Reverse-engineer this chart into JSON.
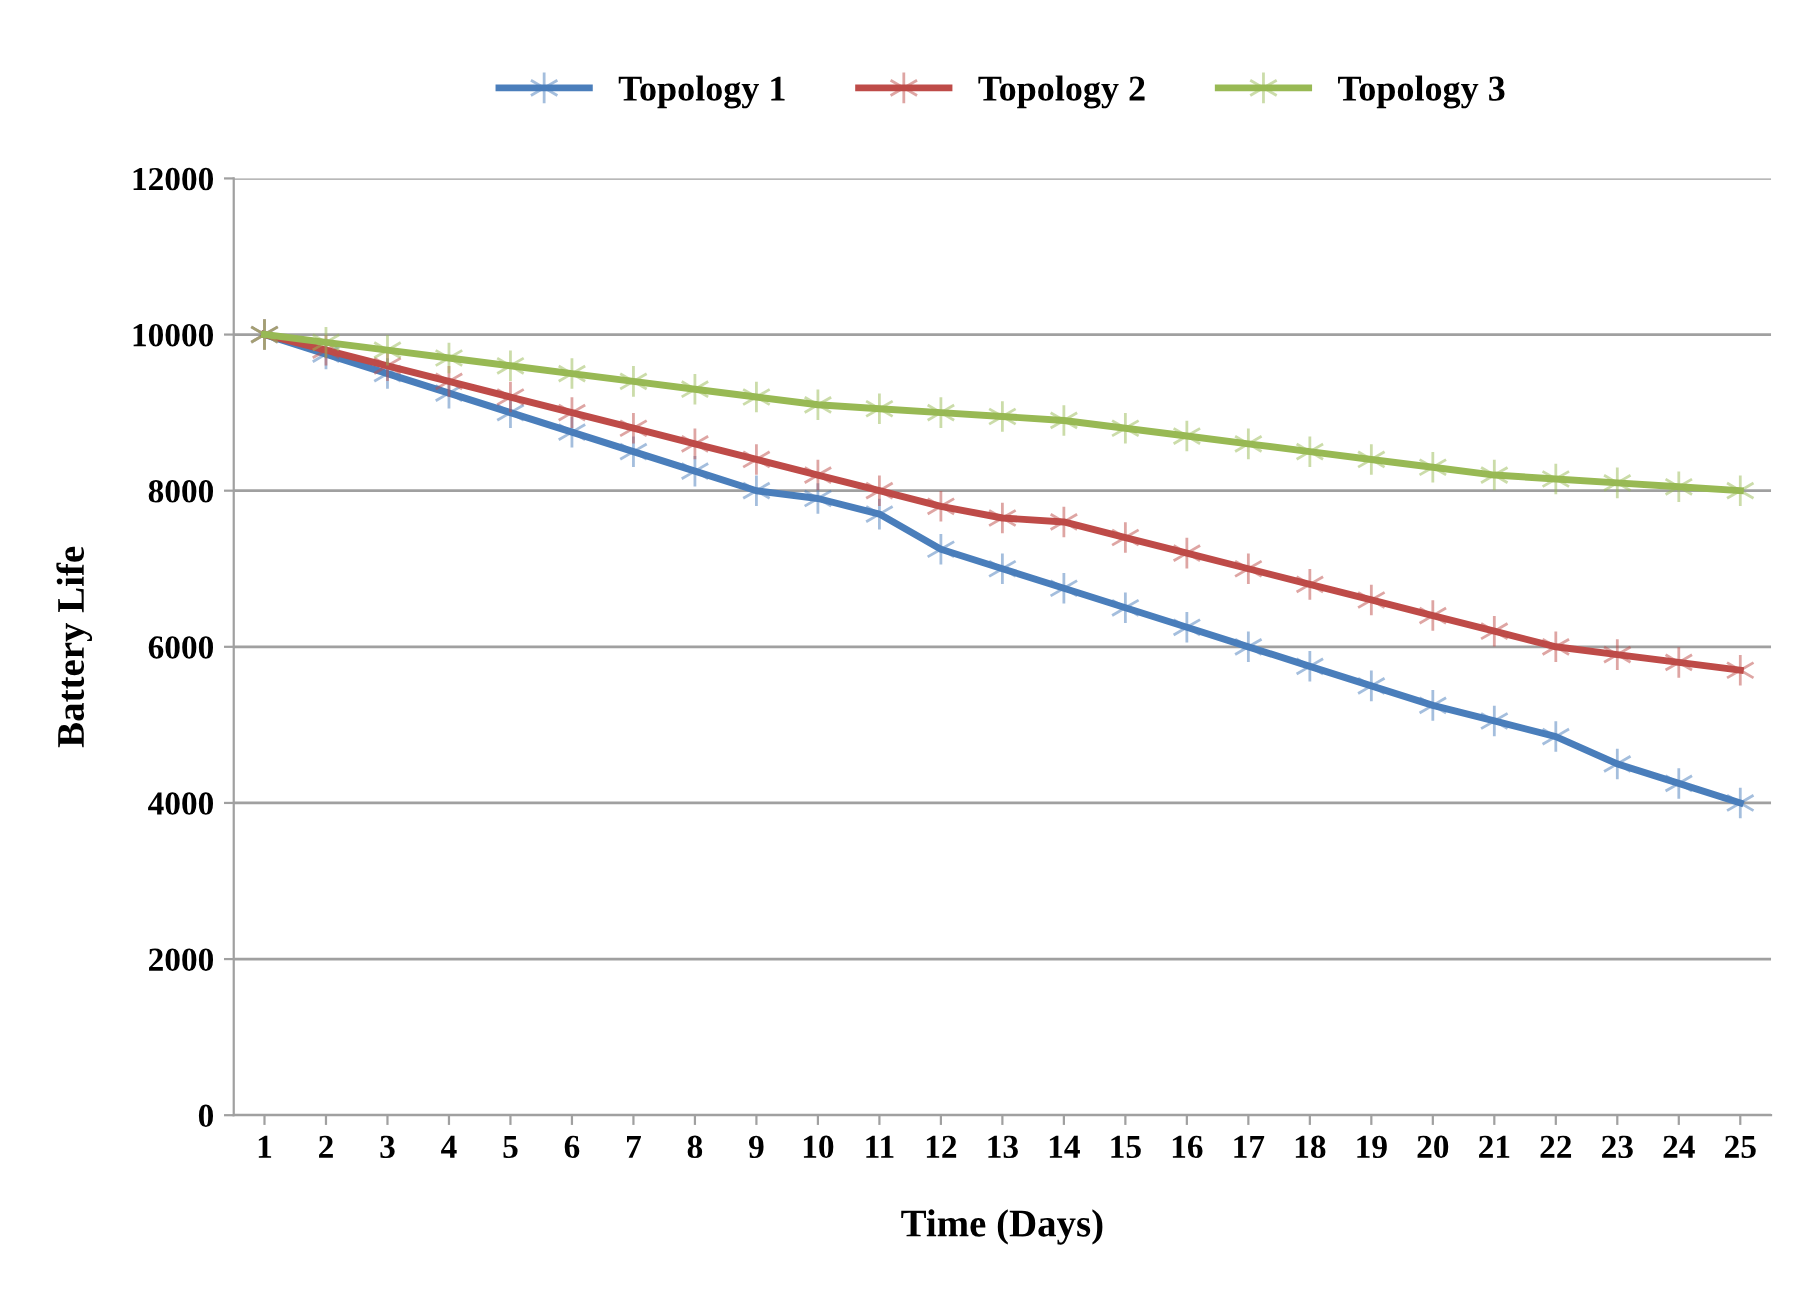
{
  "chart_data": {
    "type": "line",
    "xlabel": "Time (Days)",
    "ylabel": "Battery Life",
    "categories": [
      "1",
      "2",
      "3",
      "4",
      "5",
      "6",
      "7",
      "8",
      "9",
      "10",
      "11",
      "12",
      "13",
      "14",
      "15",
      "16",
      "17",
      "18",
      "19",
      "20",
      "21",
      "22",
      "23",
      "24",
      "25"
    ],
    "series": [
      {
        "name": "Topology 1",
        "color": "#4a7ebb",
        "values": [
          10000,
          9750,
          9500,
          9250,
          9000,
          8750,
          8500,
          8250,
          8000,
          7900,
          7700,
          7250,
          7000,
          6750,
          6500,
          6250,
          6000,
          5750,
          5500,
          5250,
          5050,
          4850,
          4500,
          4250,
          4000
        ]
      },
      {
        "name": "Topology 2",
        "color": "#be4b48",
        "values": [
          10000,
          9800,
          9600,
          9400,
          9200,
          9000,
          8800,
          8600,
          8400,
          8200,
          8000,
          7800,
          7650,
          7600,
          7400,
          7200,
          7000,
          6800,
          6600,
          6400,
          6200,
          6000,
          5900,
          5800,
          5700
        ]
      },
      {
        "name": "Topology 3",
        "color": "#98b954",
        "values": [
          10000,
          9900,
          9800,
          9700,
          9600,
          9500,
          9400,
          9300,
          9200,
          9100,
          9050,
          9000,
          8950,
          8900,
          8800,
          8700,
          8600,
          8500,
          8400,
          8300,
          8200,
          8150,
          8100,
          8050,
          8000
        ]
      }
    ],
    "ylim": [
      0,
      12000
    ],
    "yticks": [
      0,
      2000,
      4000,
      6000,
      8000,
      10000,
      12000
    ],
    "grid": "y",
    "legend": "top",
    "marker": "cross",
    "line_style": "solid"
  }
}
